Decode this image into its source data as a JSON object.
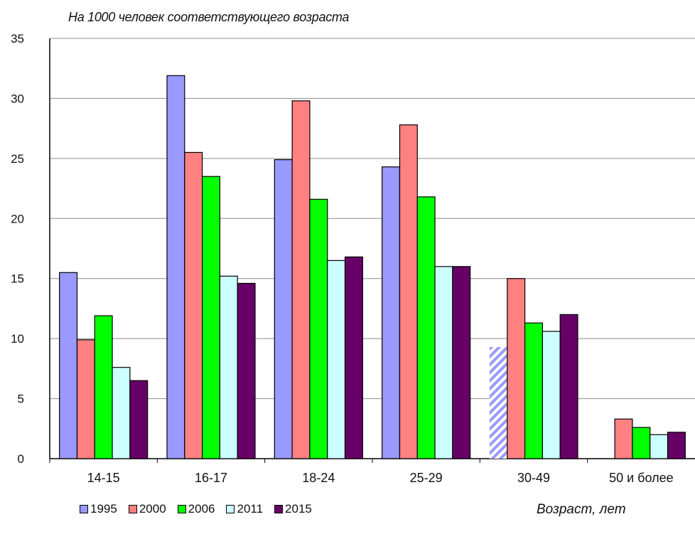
{
  "chart_data": {
    "type": "bar",
    "ylabel": "На 1000 человек соответствующего возраста",
    "xlabel": "Возраст, лет",
    "categories": [
      "14-15",
      "16-17",
      "18-24",
      "25-29",
      "30-49",
      "50 и более"
    ],
    "ylim": [
      0,
      35
    ],
    "yticks": [
      0,
      5,
      10,
      15,
      20,
      25,
      30,
      35
    ],
    "grid": true,
    "legend_position": "bottom-left",
    "series": [
      {
        "name": "1995",
        "color": "#9999ff",
        "values": [
          15.5,
          31.9,
          24.9,
          24.3,
          9.3,
          null
        ],
        "hatched_index": 4
      },
      {
        "name": "2000",
        "color": "#ff8080",
        "values": [
          9.9,
          25.5,
          29.8,
          27.8,
          15.0,
          3.3
        ]
      },
      {
        "name": "2006",
        "color": "#00ff00",
        "values": [
          11.9,
          23.5,
          21.6,
          21.8,
          11.3,
          2.6
        ]
      },
      {
        "name": "2011",
        "color": "#ccffff",
        "values": [
          7.6,
          15.2,
          16.5,
          16.0,
          10.6,
          2.0
        ]
      },
      {
        "name": "2015",
        "color": "#660066",
        "values": [
          6.5,
          14.6,
          16.8,
          16.0,
          12.0,
          2.2
        ]
      }
    ]
  }
}
